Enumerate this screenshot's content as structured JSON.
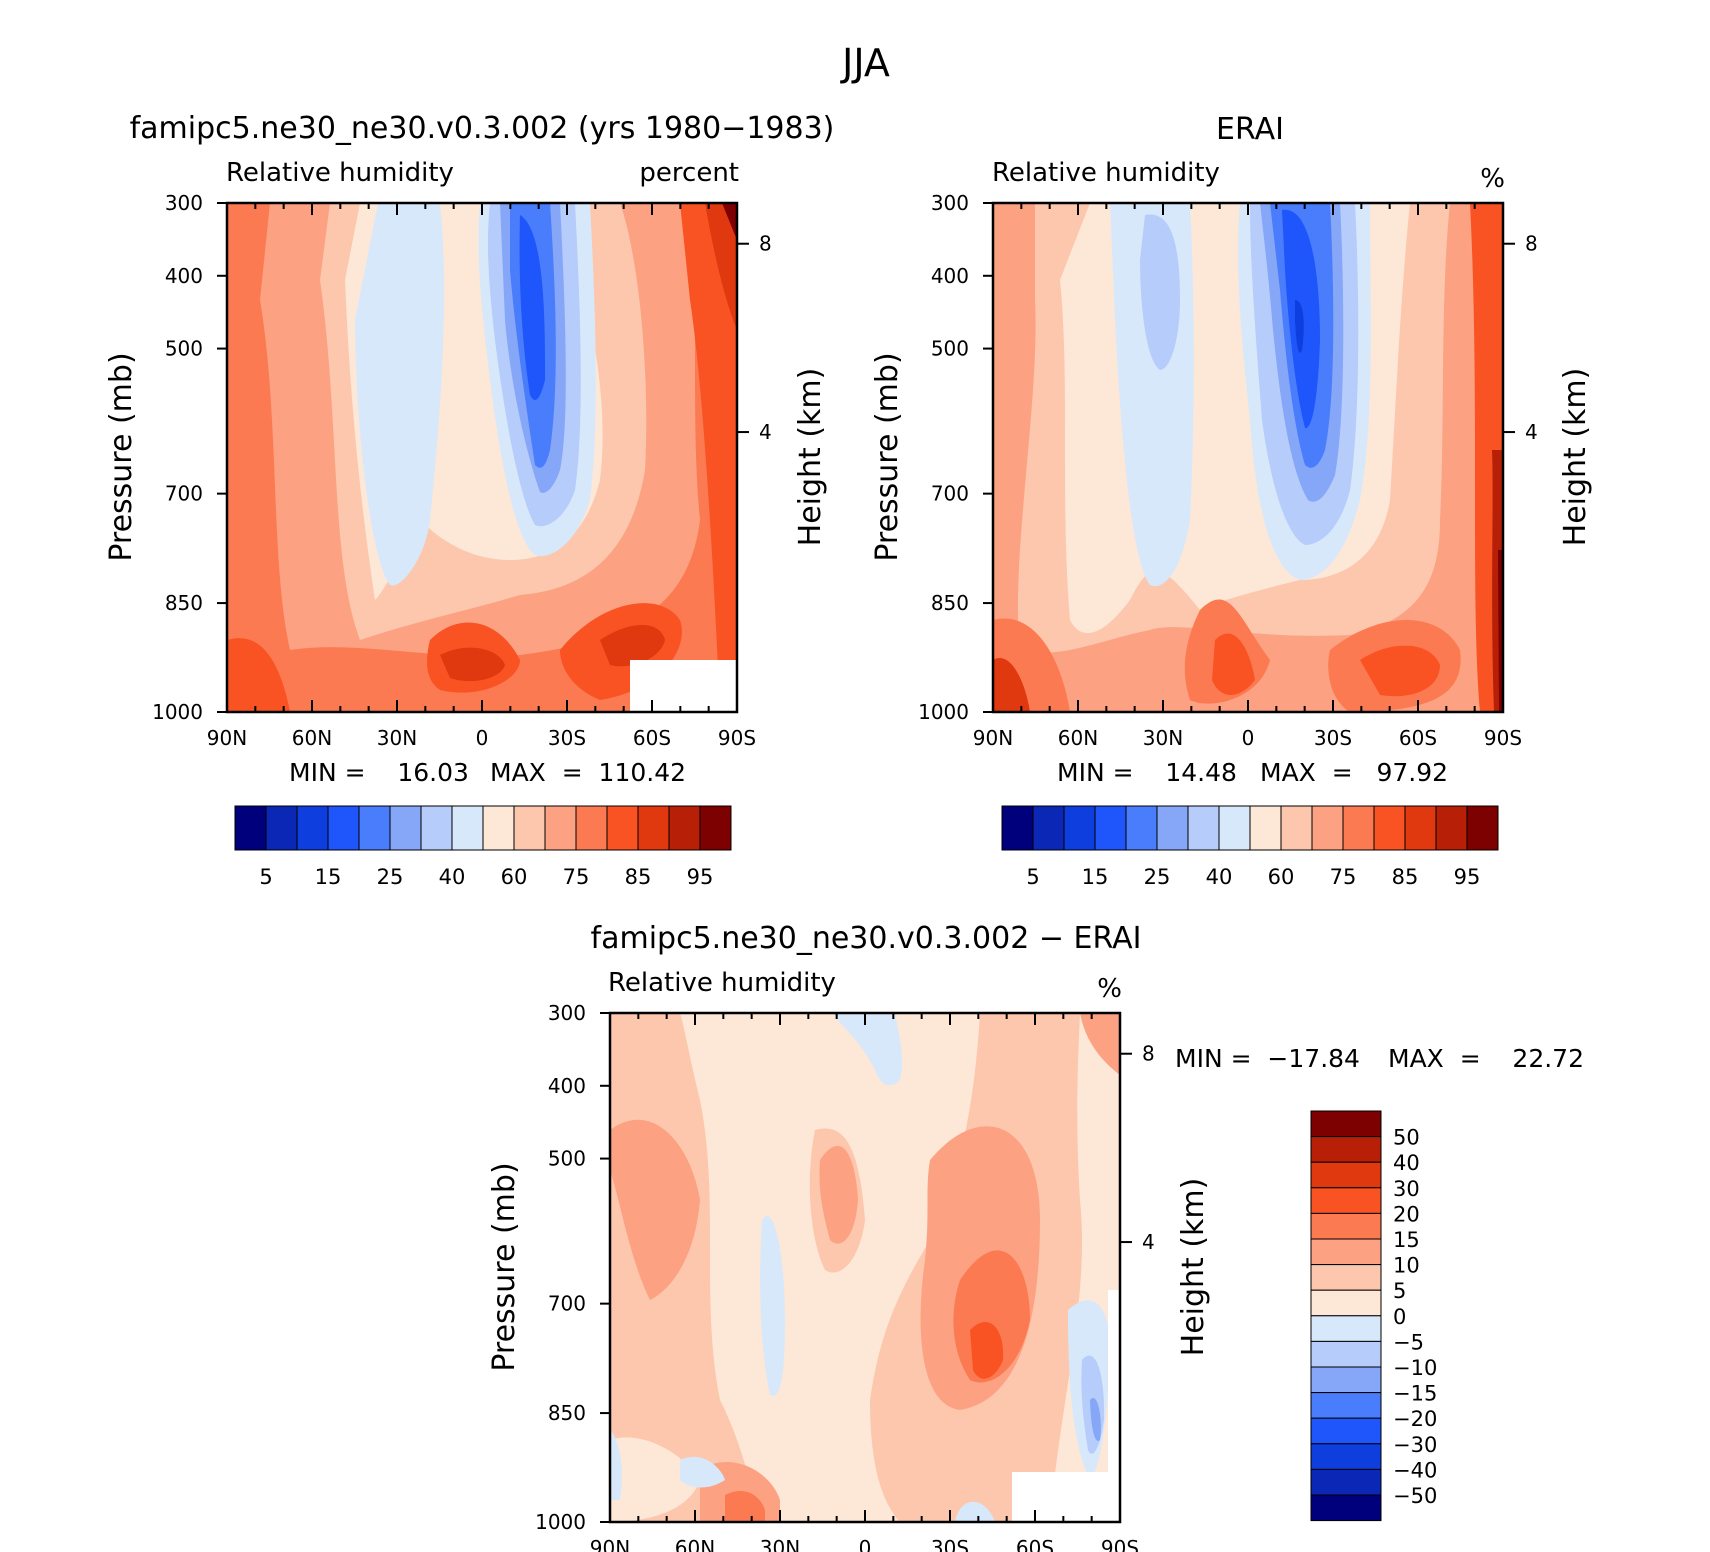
{
  "page": {
    "title": "JJA"
  },
  "colors": {
    "rh_levels": [
      "#00007d",
      "#0a27b5",
      "#0f3ede",
      "#1e56fb",
      "#4a7dfb",
      "#86a6f8",
      "#b6ccfa",
      "#d8e8fb",
      "#fde7d7",
      "#fcc7ad",
      "#fca283",
      "#fc7a52",
      "#fa5323",
      "#e0380f",
      "#b71f06",
      "#7d0101"
    ],
    "diff_levels": [
      "#00007d",
      "#0a27b5",
      "#0f3ede",
      "#1e56fb",
      "#4a7dfb",
      "#86a6f8",
      "#b6ccfa",
      "#d8e8fb",
      "#fde7d7",
      "#fcc7ad",
      "#fca283",
      "#fc7a52",
      "#fa5323",
      "#e0380f",
      "#b71f06",
      "#7d0101"
    ]
  },
  "chart_data": [
    {
      "id": "model",
      "type": "heatmap",
      "title": "famipc5.ne30_ne30.v0.3.002 (yrs 1980−1983)",
      "left_label": "Relative humidity",
      "right_label": "percent",
      "ylabel": "Pressure (mb)",
      "y2label": "Height (km)",
      "xticks": [
        "90N",
        "60N",
        "30N",
        "0",
        "30S",
        "60S",
        "90S"
      ],
      "yticks": [
        "300",
        "400",
        "500",
        "700",
        "850",
        "1000"
      ],
      "y2ticks": [
        "8",
        "4"
      ],
      "min_text": "MIN =    16.03",
      "max_text": "MAX  =  110.42",
      "colorbar_labels": [
        "5",
        "15",
        "25",
        "40",
        "60",
        "75",
        "85",
        "95"
      ],
      "ylim": [
        1000,
        300
      ],
      "xlim": [
        90,
        -90
      ],
      "features": [
        {
          "lat": 5,
          "p": 450,
          "value": 15
        },
        {
          "lat": 45,
          "p": 550,
          "value": 45
        },
        {
          "lat": 10,
          "p": 920,
          "value": 90
        },
        {
          "lat": -45,
          "p": 880,
          "value": 90
        },
        {
          "lat": -88,
          "p": 320,
          "value": 100
        }
      ]
    },
    {
      "id": "obs",
      "type": "heatmap",
      "title": "ERAI",
      "left_label": "Relative humidity",
      "right_label": "%",
      "ylabel": "Pressure (mb)",
      "y2label": "Height (km)",
      "xticks": [
        "90N",
        "60N",
        "30N",
        "0",
        "30S",
        "60S",
        "90S"
      ],
      "yticks": [
        "300",
        "400",
        "500",
        "700",
        "850",
        "1000"
      ],
      "y2ticks": [
        "8",
        "4"
      ],
      "min_text": "MIN =    14.48",
      "max_text": "MAX  =   97.92",
      "colorbar_labels": [
        "5",
        "15",
        "25",
        "40",
        "60",
        "75",
        "85",
        "95"
      ],
      "ylim": [
        1000,
        300
      ],
      "xlim": [
        90,
        -90
      ],
      "features": [
        {
          "lat": -15,
          "p": 500,
          "value": 15
        },
        {
          "lat": 30,
          "p": 450,
          "value": 35
        },
        {
          "lat": 10,
          "p": 930,
          "value": 85
        },
        {
          "lat": -50,
          "p": 920,
          "value": 85
        },
        {
          "lat": -89,
          "p": 800,
          "value": 97
        }
      ]
    },
    {
      "id": "diff",
      "type": "heatmap",
      "title": "famipc5.ne30_ne30.v0.3.002 − ERAI",
      "left_label": "Relative humidity",
      "right_label": "%",
      "ylabel": "Pressure (mb)",
      "y2label": "Height (km)",
      "xticks": [
        "90N",
        "60N",
        "30N",
        "0",
        "30S",
        "60S",
        "90S"
      ],
      "yticks": [
        "300",
        "400",
        "500",
        "700",
        "850",
        "1000"
      ],
      "y2ticks": [
        "8",
        "4"
      ],
      "min_text": "MIN =  −17.84",
      "max_text": "MAX  =    22.72",
      "colorbar_labels": [
        "50",
        "40",
        "30",
        "20",
        "15",
        "10",
        "5",
        "0",
        "−5",
        "−10",
        "−15",
        "−20",
        "−30",
        "−40",
        "−50"
      ],
      "ylim": [
        1000,
        300
      ],
      "xlim": [
        90,
        -90
      ],
      "features": [
        {
          "lat": -45,
          "p": 780,
          "value": 22
        },
        {
          "lat": 30,
          "p": 680,
          "value": -5
        },
        {
          "lat": -80,
          "p": 820,
          "value": -15
        },
        {
          "lat": 0,
          "p": 330,
          "value": -5
        }
      ]
    }
  ]
}
